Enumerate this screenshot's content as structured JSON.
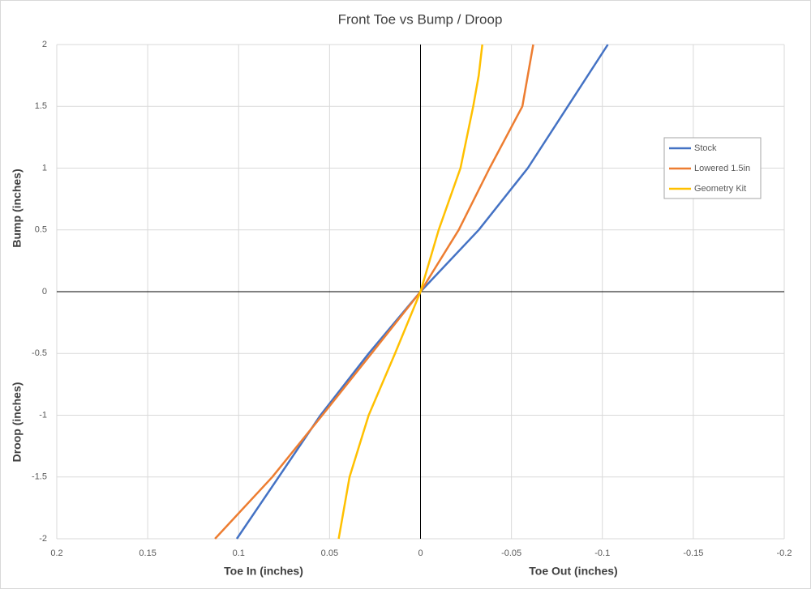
{
  "chart_data": {
    "type": "line",
    "title": "Front Toe vs Bump / Droop",
    "x_label_left": "Toe In (inches)",
    "x_label_right": "Toe Out (inches)",
    "y_label_top": "Bump (inches)",
    "y_label_bottom": "Droop (inches)",
    "xlim": [
      0.2,
      -0.2
    ],
    "xticks": [
      0.2,
      0.15,
      0.1,
      0.05,
      0,
      -0.05,
      -0.1,
      -0.15,
      -0.2
    ],
    "ylim": [
      -2,
      2
    ],
    "yticks": [
      -2,
      -1.5,
      -1,
      -0.5,
      0,
      0.5,
      1,
      1.5,
      2
    ],
    "grid": true,
    "legend": "right",
    "series": [
      {
        "name": "Stock",
        "color": "#4472c4",
        "x": [
          0.101,
          0.078,
          0.055,
          0.0285,
          0,
          -0.032,
          -0.059,
          -0.081,
          -0.103
        ],
        "values": [
          -2,
          -1.5,
          -1,
          -0.5,
          0,
          0.5,
          1,
          1.5,
          2
        ]
      },
      {
        "name": "Lowered 1.5in",
        "color": "#ed7d31",
        "x": [
          0.113,
          0.0815,
          0.054,
          0.027,
          0,
          -0.021,
          -0.038,
          -0.047,
          -0.056,
          -0.059,
          -0.062
        ],
        "values": [
          -2,
          -1.5,
          -1,
          -0.5,
          0,
          0.5,
          1,
          1.25,
          1.5,
          1.75,
          2
        ]
      },
      {
        "name": "Geometry Kit",
        "color": "#ffc000",
        "x": [
          0.045,
          0.039,
          0.0285,
          0.014,
          0,
          -0.01,
          -0.022,
          -0.029,
          -0.032,
          -0.034
        ],
        "values": [
          -2,
          -1.5,
          -1,
          -0.5,
          0,
          0.5,
          1,
          1.5,
          1.75,
          2
        ]
      }
    ]
  }
}
